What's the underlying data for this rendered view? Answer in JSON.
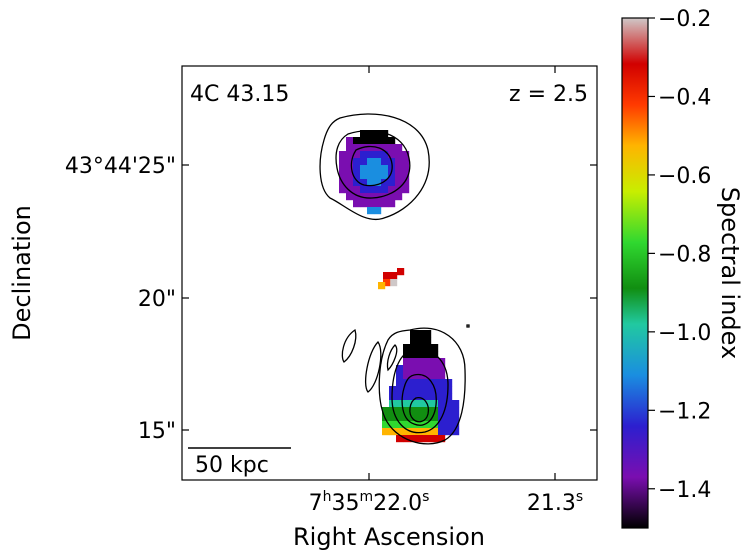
{
  "panel": {
    "source_name": "4C 43.15",
    "redshift_label": "z = 2.5",
    "scale_bar_label": "50 kpc"
  },
  "axes": {
    "xlabel": "Right Ascension",
    "ylabel": "Declination",
    "x_ticks": [
      {
        "label_parts": [
          "7",
          "h",
          "35",
          "m",
          "22.0",
          "s"
        ]
      },
      {
        "label_parts": [
          "21.3",
          "s"
        ]
      }
    ],
    "y_ticks": [
      {
        "label": "43°44'25\""
      },
      {
        "label": "20\""
      },
      {
        "label": "15\""
      }
    ]
  },
  "colorbar": {
    "label": "Spectral index",
    "range": [
      -1.5,
      -0.2
    ],
    "ticks": [
      "−0.2",
      "−0.4",
      "−0.6",
      "−0.8",
      "−1.0",
      "−1.2",
      "−1.4"
    ],
    "tick_values": [
      -0.2,
      -0.4,
      -0.6,
      -0.8,
      -1.0,
      -1.2,
      -1.4
    ],
    "colormap": [
      "#000000",
      "#7a0eb0",
      "#2c1fcf",
      "#1a8ee0",
      "#21c9a0",
      "#118e11",
      "#30d830",
      "#c8ee00",
      "#ffb400",
      "#ff3a00",
      "#d10000",
      "#cfc8c8"
    ]
  }
}
